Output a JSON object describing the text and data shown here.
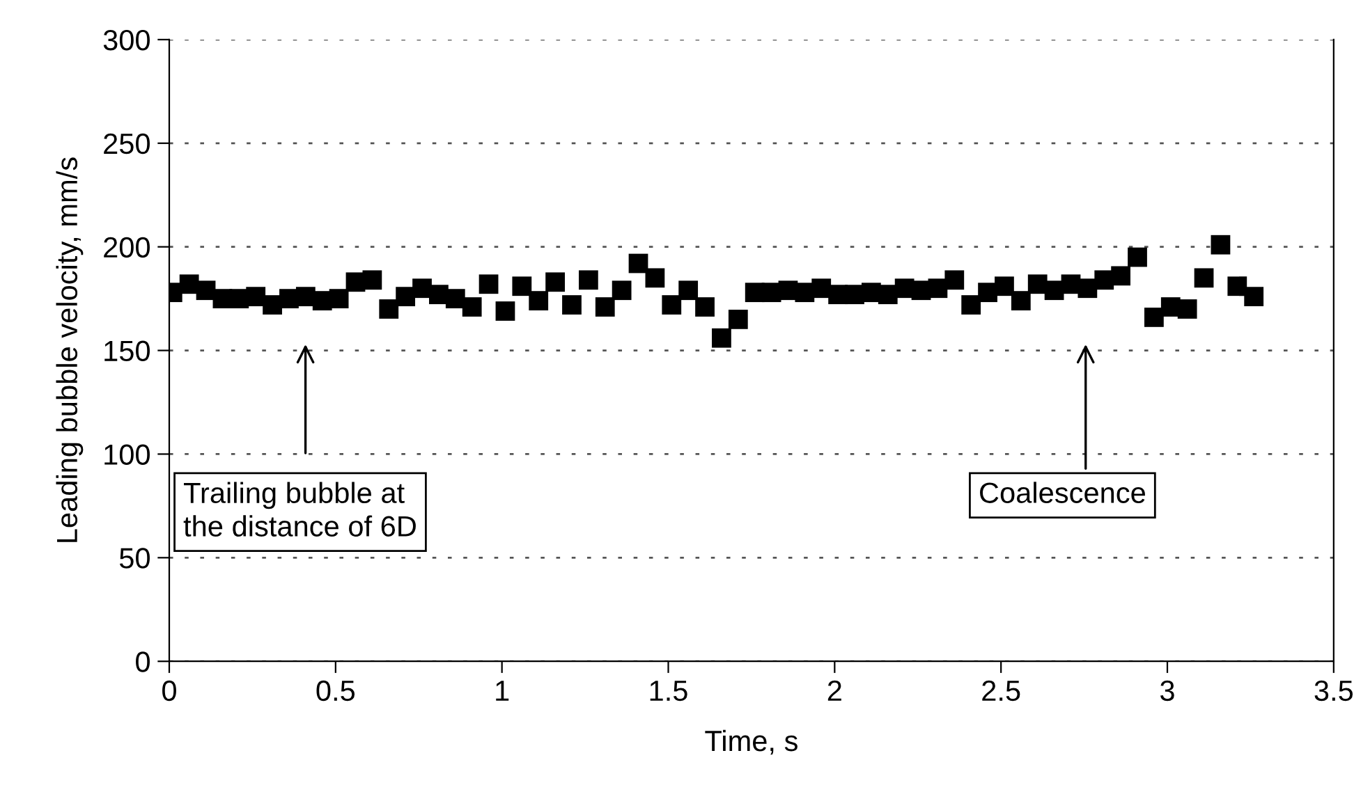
{
  "chart_data": {
    "type": "scatter",
    "xlabel": "Time, s",
    "ylabel": "Leading bubble velocity, mm/s",
    "x": [
      0.01,
      0.06,
      0.11,
      0.16,
      0.21,
      0.26,
      0.31,
      0.36,
      0.41,
      0.46,
      0.51,
      0.56,
      0.61,
      0.66,
      0.71,
      0.76,
      0.81,
      0.86,
      0.91,
      0.96,
      1.01,
      1.06,
      1.11,
      1.16,
      1.21,
      1.26,
      1.31,
      1.36,
      1.41,
      1.46,
      1.51,
      1.56,
      1.61,
      1.66,
      1.71,
      1.76,
      1.81,
      1.86,
      1.91,
      1.96,
      2.01,
      2.06,
      2.11,
      2.16,
      2.21,
      2.26,
      2.31,
      2.36,
      2.41,
      2.46,
      2.51,
      2.56,
      2.61,
      2.66,
      2.71,
      2.76,
      2.81,
      2.86,
      2.91,
      2.96,
      3.01,
      3.06,
      3.11,
      3.16,
      3.21,
      3.26
    ],
    "series": [
      {
        "color": "#000000",
        "values": [
          178,
          182,
          179,
          175,
          175,
          176,
          172,
          175,
          176,
          174,
          175,
          183,
          184,
          170,
          176,
          180,
          177,
          175,
          171,
          182,
          169,
          181,
          174,
          183,
          172,
          184,
          171,
          179,
          192,
          185,
          172,
          179,
          171,
          156,
          165,
          178,
          178,
          179,
          178,
          180,
          177,
          177,
          178,
          177,
          180,
          179,
          180,
          184,
          172,
          178,
          181,
          174,
          182,
          179,
          182,
          180,
          184,
          186,
          195,
          166,
          171,
          170,
          185,
          201,
          181,
          176
        ]
      }
    ],
    "marker": "square",
    "xlim": [
      0,
      3.5
    ],
    "ylim": [
      0,
      300
    ],
    "xticks": [
      0,
      0.5,
      1,
      1.5,
      2,
      2.5,
      3,
      3.5
    ],
    "yticks": [
      0,
      50,
      100,
      150,
      200,
      250,
      300
    ],
    "grid": "y",
    "annotations": [
      "Trailing bubble at\nthe distance of 6D",
      "Coalescence"
    ]
  }
}
